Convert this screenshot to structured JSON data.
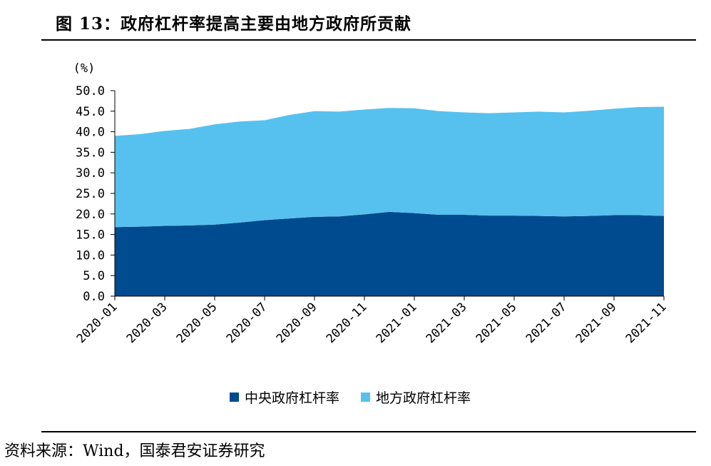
{
  "title": "图 13：政府杠杆率提高主要由地方政府所贡献",
  "source": {
    "label": "资料来源：",
    "text": "Wind，国泰君安证券研究"
  },
  "chart_data": {
    "type": "area",
    "stacked": true,
    "unit_label": "(%)",
    "x": [
      "2020-01",
      "2020-02",
      "2020-03",
      "2020-04",
      "2020-05",
      "2020-06",
      "2020-07",
      "2020-08",
      "2020-09",
      "2020-10",
      "2020-11",
      "2020-12",
      "2021-01",
      "2021-02",
      "2021-03",
      "2021-04",
      "2021-05",
      "2021-06",
      "2021-07",
      "2021-08",
      "2021-09",
      "2021-10",
      "2021-11"
    ],
    "x_tick_labels": [
      "2020-01",
      "2020-03",
      "2020-05",
      "2020-07",
      "2020-09",
      "2020-11",
      "2021-01",
      "2021-03",
      "2021-05",
      "2021-07",
      "2021-09",
      "2021-11"
    ],
    "y_tick_labels": [
      "50.0",
      "45.0",
      "40.0",
      "35.0",
      "30.0",
      "25.0",
      "20.0",
      "15.0",
      "10.0",
      "5.0",
      "0.0"
    ],
    "ylim": [
      0,
      50
    ],
    "series": [
      {
        "name": "中央政府杠杆率",
        "color": "#004a8f",
        "values": [
          16.8,
          16.9,
          17.1,
          17.2,
          17.4,
          17.9,
          18.5,
          18.9,
          19.3,
          19.4,
          19.9,
          20.5,
          20.2,
          19.8,
          19.8,
          19.6,
          19.6,
          19.5,
          19.4,
          19.5,
          19.7,
          19.7,
          19.5
        ]
      },
      {
        "name": "地方政府杠杆率",
        "color": "#56c1ee",
        "values": [
          22.2,
          22.5,
          23.1,
          23.5,
          24.4,
          24.6,
          24.3,
          25.2,
          25.7,
          25.5,
          25.5,
          25.3,
          25.5,
          25.2,
          24.9,
          24.9,
          25.1,
          25.4,
          25.3,
          25.6,
          25.9,
          26.3,
          26.6
        ]
      }
    ],
    "legend_position": "bottom",
    "grid": false
  }
}
